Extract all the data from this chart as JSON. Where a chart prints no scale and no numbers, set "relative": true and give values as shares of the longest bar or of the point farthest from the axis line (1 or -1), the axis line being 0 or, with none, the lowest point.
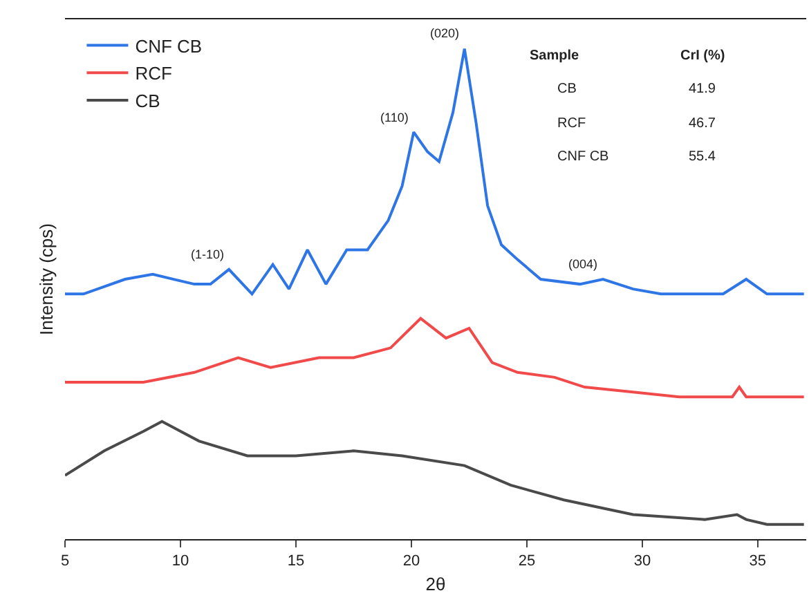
{
  "chart_data": {
    "type": "line",
    "relative": true,
    "xlabel": "2θ",
    "ylabel": "Intensity (cps)",
    "xlim": [
      5,
      37.1
    ],
    "xticks": [
      5,
      10,
      15,
      20,
      25,
      30,
      35
    ],
    "legend": "top left",
    "marker": "none",
    "line_style": "solid",
    "x": [
      5.0,
      5.8,
      7.6,
      8.8,
      10.6,
      11.3,
      12.1,
      13.1,
      14.0,
      14.7,
      15.5,
      16.3,
      17.2,
      18.1,
      19.0,
      19.6,
      20.1,
      20.7,
      21.2,
      21.8,
      22.3,
      22.8,
      23.3,
      23.9,
      24.6,
      25.6,
      27.3,
      28.3,
      29.6,
      30.8,
      32.1,
      33.5,
      34.5,
      35.4,
      37.0
    ],
    "series": [
      {
        "name": "CNF CB",
        "color": "#2e75e6",
        "values": [
          0.5,
          0.5,
          0.53,
          0.54,
          0.52,
          0.52,
          0.55,
          0.5,
          0.56,
          0.51,
          0.59,
          0.52,
          0.59,
          0.59,
          0.65,
          0.72,
          0.83,
          0.79,
          0.77,
          0.87,
          1.0,
          0.85,
          0.68,
          0.6,
          0.57,
          0.53,
          0.52,
          0.53,
          0.51,
          0.5,
          0.5,
          0.5,
          0.53,
          0.5,
          0.5
        ]
      },
      {
        "name": "RCF",
        "color": "#f04a4a",
        "x": [
          5.0,
          8.4,
          10.6,
          12.5,
          13.9,
          16.0,
          17.5,
          19.1,
          20.4,
          21.5,
          22.5,
          23.5,
          24.6,
          26.2,
          27.5,
          29.6,
          31.6,
          33.9,
          34.2,
          34.5,
          37.0
        ],
        "values": [
          0.32,
          0.32,
          0.34,
          0.37,
          0.35,
          0.37,
          0.37,
          0.39,
          0.45,
          0.41,
          0.43,
          0.36,
          0.34,
          0.33,
          0.31,
          0.3,
          0.29,
          0.29,
          0.31,
          0.29,
          0.29
        ]
      },
      {
        "name": "CB",
        "color": "#4a4a4a",
        "x": [
          5.0,
          6.7,
          8.4,
          9.2,
          10.8,
          12.9,
          15.0,
          17.5,
          19.6,
          22.3,
          24.3,
          26.6,
          29.6,
          32.7,
          34.1,
          34.5,
          35.4,
          37.0
        ],
        "values": [
          0.13,
          0.18,
          0.22,
          0.24,
          0.2,
          0.17,
          0.17,
          0.18,
          0.17,
          0.15,
          0.11,
          0.08,
          0.05,
          0.04,
          0.05,
          0.04,
          0.03,
          0.03
        ]
      }
    ],
    "annotations": [
      {
        "text": "(1-10)",
        "x": 12.1,
        "y": 0.55
      },
      {
        "text": "(110)",
        "x": 20.1,
        "y": 0.83
      },
      {
        "text": "(020)",
        "x": 22.3,
        "y": 1.0
      },
      {
        "text": "(004)",
        "x": 28.3,
        "y": 0.53
      },
      "Sample",
      "CrI (%)",
      "CB",
      "41.9",
      "RCF",
      "46.7",
      "CNF CB",
      "55.4"
    ]
  }
}
